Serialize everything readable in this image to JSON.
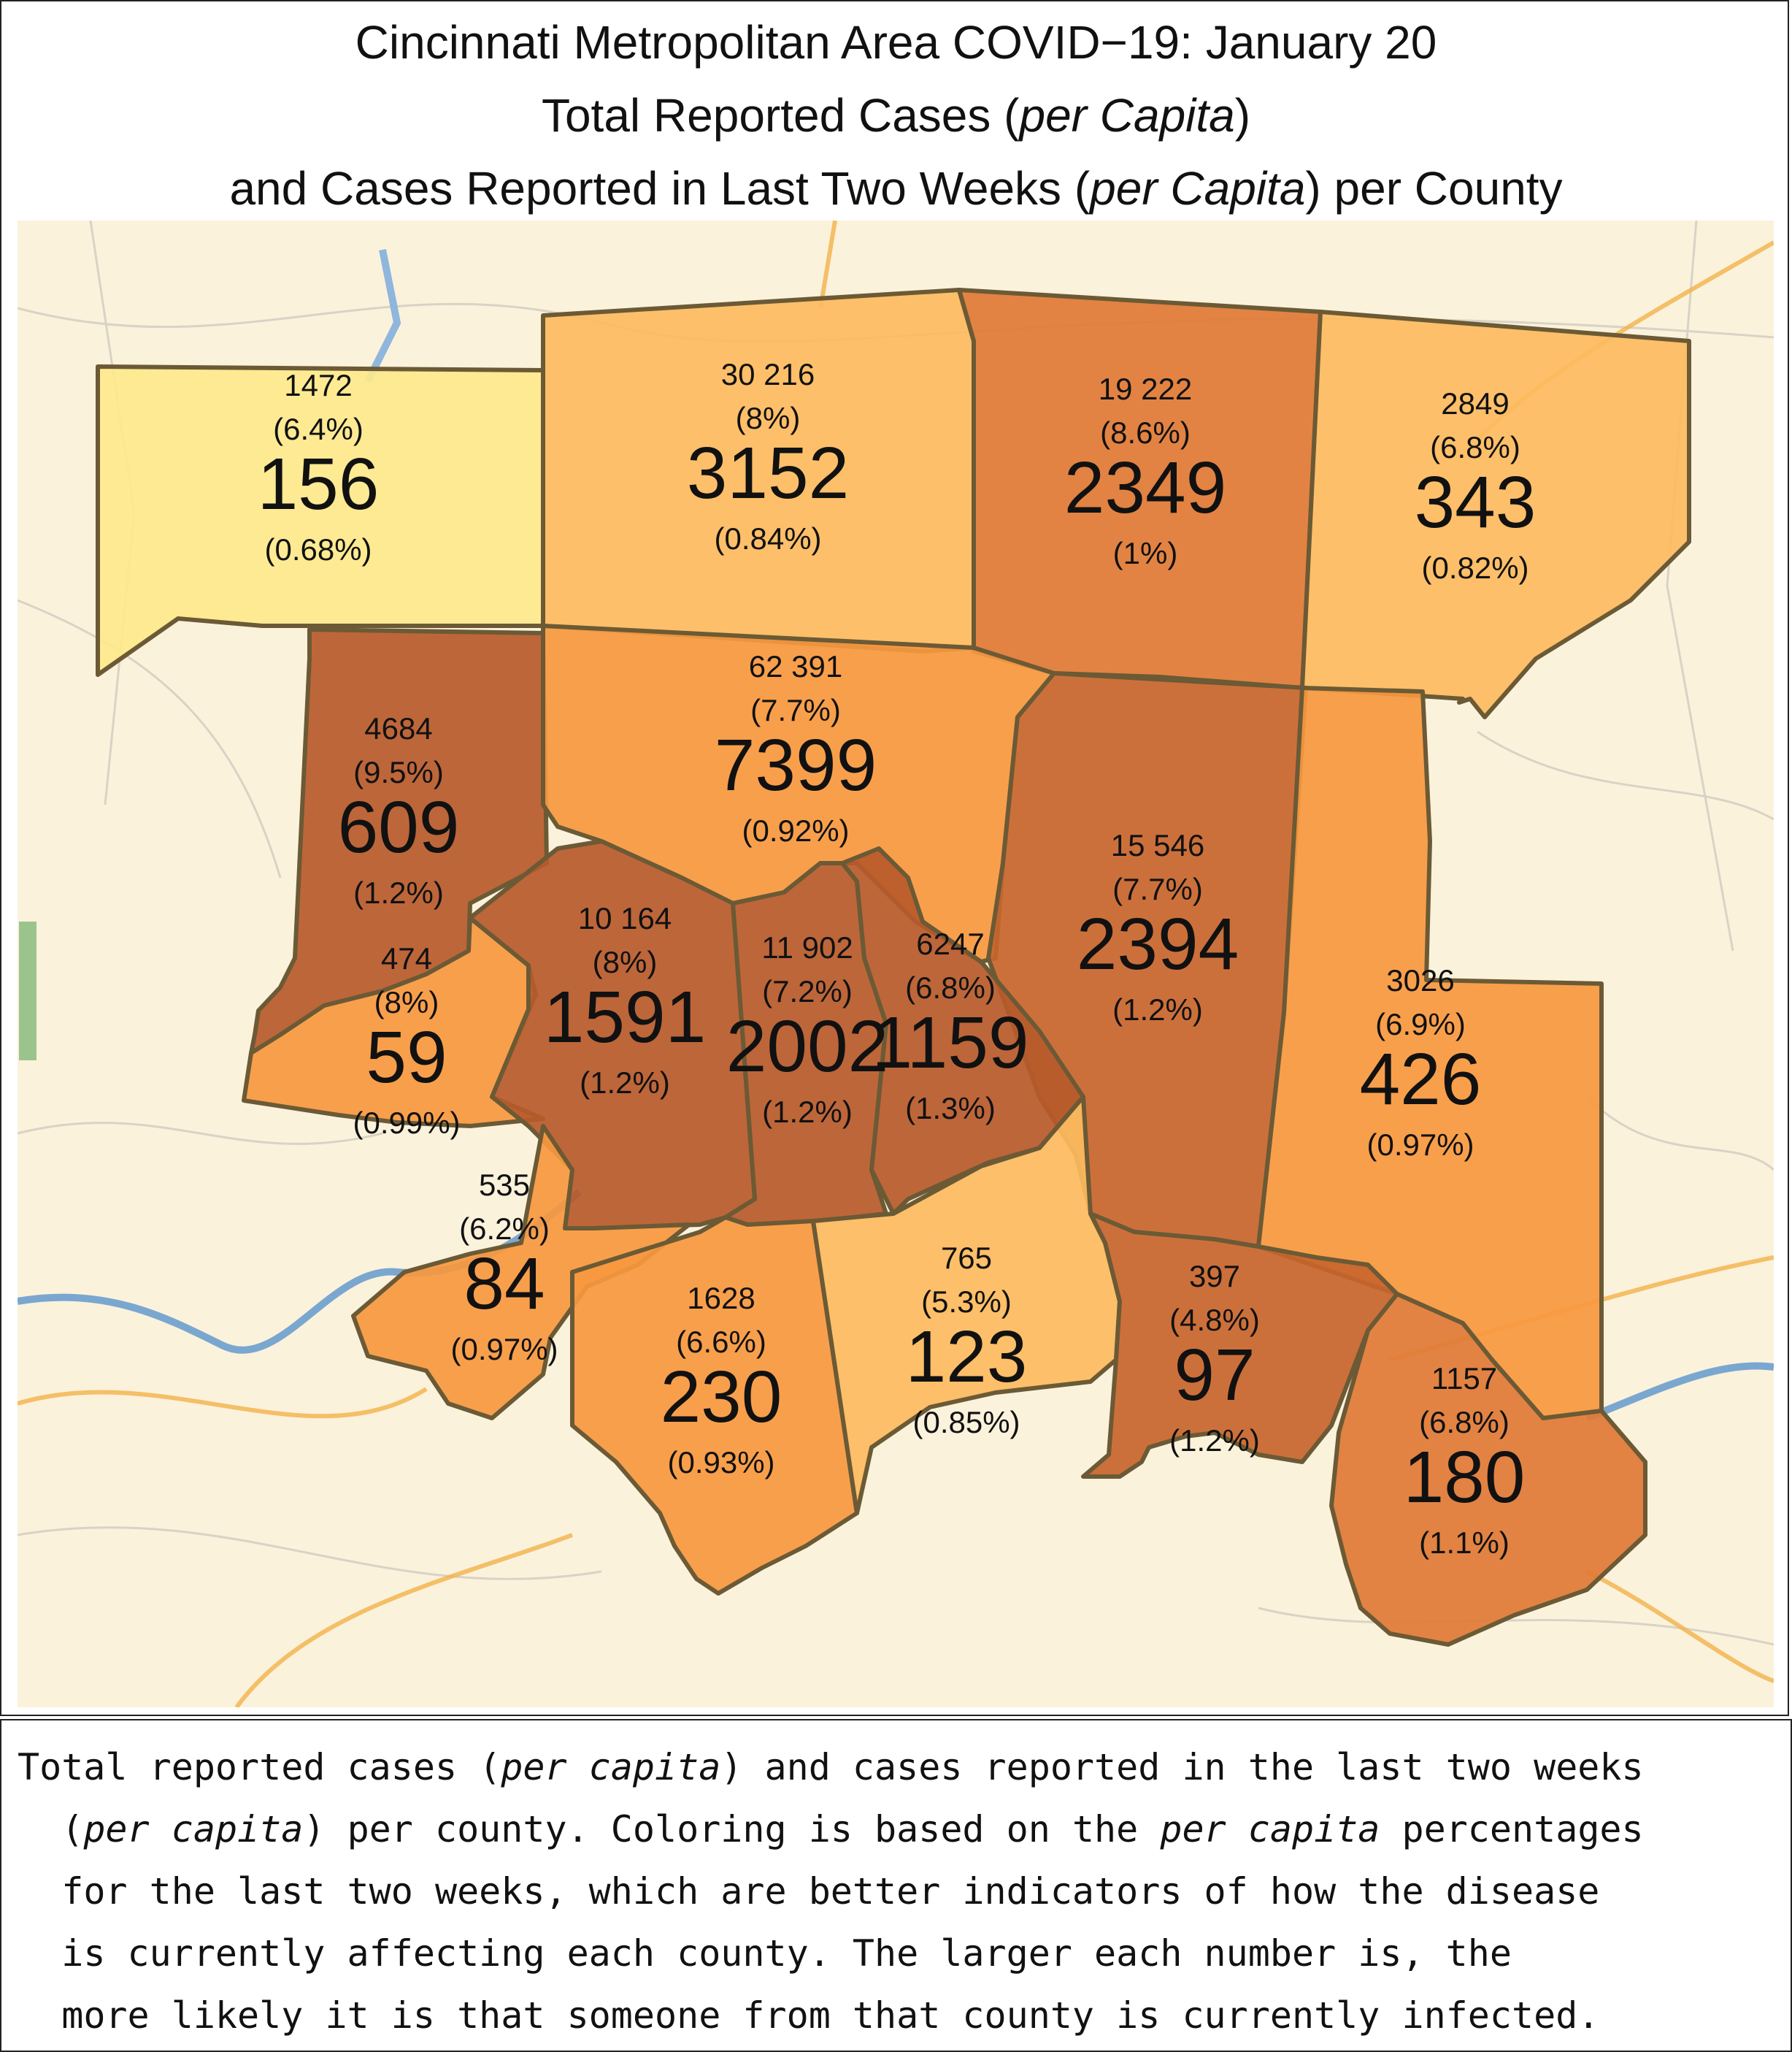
{
  "title": {
    "line1": "Cincinnati Metropolitan Area COVID−19: January 20",
    "line2_pre": "Total Reported Cases (",
    "line2_em": "per Capita",
    "line2_post": ")",
    "line3_pre": "and Cases Reported in Last Two Weeks (",
    "line3_em": "per Capita",
    "line3_post": ") per County"
  },
  "colors": {
    "lightest": "#fde98c",
    "light": "#fdbb5e",
    "mid": "#f7983f",
    "dark": "#e07a35",
    "darker": "#c8652c",
    "darkest": "#b75a2b",
    "border": "#6b5a35",
    "basemap": "#fbf2dc"
  },
  "counties": [
    {
      "id": "county-nw",
      "total": "1472",
      "total_pct": "(6.4%)",
      "recent": "156",
      "recent_pct": "(0.68%)",
      "color": "lightest"
    },
    {
      "id": "county-n1",
      "total": "30 216",
      "total_pct": "(8%)",
      "recent": "3152",
      "recent_pct": "(0.84%)",
      "color": "light"
    },
    {
      "id": "county-n2",
      "total": "19 222",
      "total_pct": "(8.6%)",
      "recent": "2349",
      "recent_pct": "(1%)",
      "color": "dark"
    },
    {
      "id": "county-ne",
      "total": "2849",
      "total_pct": "(6.8%)",
      "recent": "343",
      "recent_pct": "(0.82%)",
      "color": "light"
    },
    {
      "id": "county-w1",
      "total": "4684",
      "total_pct": "(9.5%)",
      "recent": "609",
      "recent_pct": "(1.2%)",
      "color": "darkest"
    },
    {
      "id": "county-c1",
      "total": "62 391",
      "total_pct": "(7.7%)",
      "recent": "7399",
      "recent_pct": "(0.92%)",
      "color": "mid"
    },
    {
      "id": "county-e1",
      "total": "15 546",
      "total_pct": "(7.7%)",
      "recent": "2394",
      "recent_pct": "(1.2%)",
      "color": "darker"
    },
    {
      "id": "county-w2",
      "total": "474",
      "total_pct": "(8%)",
      "recent": "59",
      "recent_pct": "(0.99%)",
      "color": "mid"
    },
    {
      "id": "county-c2",
      "total": "10 164",
      "total_pct": "(8%)",
      "recent": "1591",
      "recent_pct": "(1.2%)",
      "color": "darkest"
    },
    {
      "id": "county-c3",
      "total": "11 902",
      "total_pct": "(7.2%)",
      "recent": "2002",
      "recent_pct": "(1.2%)",
      "color": "darkest"
    },
    {
      "id": "county-c4",
      "total": "6247",
      "total_pct": "(6.8%)",
      "recent": "1159",
      "recent_pct": "(1.3%)",
      "color": "darkest"
    },
    {
      "id": "county-e2",
      "total": "3026",
      "total_pct": "(6.9%)",
      "recent": "426",
      "recent_pct": "(0.97%)",
      "color": "mid"
    },
    {
      "id": "county-s1",
      "total": "535",
      "total_pct": "(6.2%)",
      "recent": "84",
      "recent_pct": "(0.97%)",
      "color": "mid"
    },
    {
      "id": "county-s2",
      "total": "1628",
      "total_pct": "(6.6%)",
      "recent": "230",
      "recent_pct": "(0.93%)",
      "color": "mid"
    },
    {
      "id": "county-s3",
      "total": "765",
      "total_pct": "(5.3%)",
      "recent": "123",
      "recent_pct": "(0.85%)",
      "color": "light"
    },
    {
      "id": "county-s4",
      "total": "397",
      "total_pct": "(4.8%)",
      "recent": "97",
      "recent_pct": "(1.2%)",
      "color": "darker"
    },
    {
      "id": "county-s5",
      "total": "1157",
      "total_pct": "(6.8%)",
      "recent": "180",
      "recent_pct": "(1.1%)",
      "color": "dark"
    }
  ],
  "caption": {
    "p1": "Total reported cases (",
    "e1": "per capita",
    "p2": ") and cases reported in the last two weeks\n  (",
    "e2": "per capita",
    "p3": ") per county. Coloring is based on the ",
    "e3": "per capita",
    "p4": " percentages\n  for the last two weeks, which are better indicators of how the disease\n  is currently affecting each county. The larger each number is, the\n  more likely it is that someone from that county is currently infected."
  }
}
